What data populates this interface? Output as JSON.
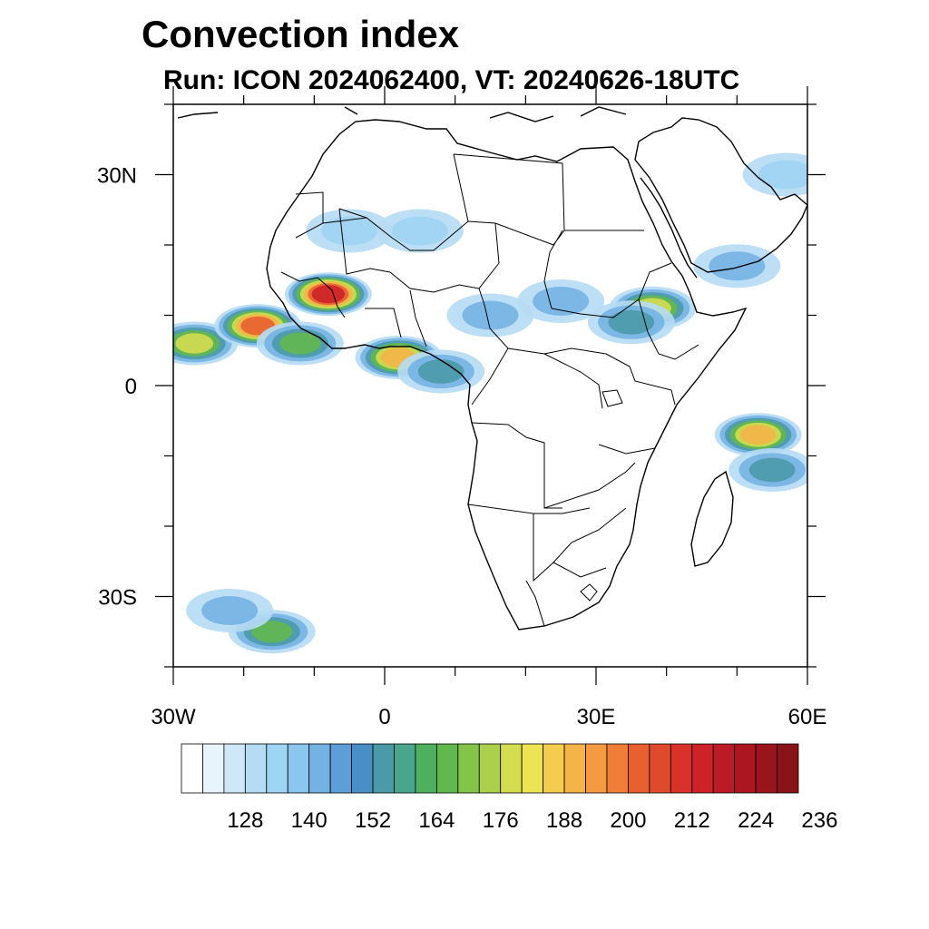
{
  "header": {
    "title": "Convection index",
    "subtitle": "Run: ICON 2024062400,  VT: 20240626-18UTC"
  },
  "map": {
    "region": "Africa",
    "lon_range": [
      -30,
      60
    ],
    "lat_range": [
      -40,
      40
    ],
    "lat_ticks": [
      {
        "value": 30,
        "label": "30N"
      },
      {
        "value": 0,
        "label": "0"
      },
      {
        "value": -30,
        "label": "30S"
      }
    ],
    "lon_ticks": [
      {
        "value": -30,
        "label": "30W"
      },
      {
        "value": 0,
        "label": "0"
      },
      {
        "value": 30,
        "label": "30E"
      },
      {
        "value": 60,
        "label": "60E"
      }
    ],
    "convection_areas": [
      {
        "lon": -27,
        "lat": 6,
        "value": 176
      },
      {
        "lon": -18,
        "lat": 8.5,
        "value": 200
      },
      {
        "lon": -12,
        "lat": 6,
        "value": 164
      },
      {
        "lon": 2,
        "lat": 4,
        "value": 188
      },
      {
        "lon": 8,
        "lat": 2,
        "value": 152
      },
      {
        "lon": 38,
        "lat": 11,
        "value": 176
      },
      {
        "lon": 35,
        "lat": 9,
        "value": 152
      },
      {
        "lon": 53,
        "lat": -7,
        "value": 188
      },
      {
        "lon": 55,
        "lat": -12,
        "value": 152
      },
      {
        "lon": -16,
        "lat": -35,
        "value": 164
      },
      {
        "lon": -22,
        "lat": -32,
        "value": 140
      },
      {
        "lon": 5,
        "lat": 22,
        "value": 128
      },
      {
        "lon": -5,
        "lat": 22,
        "value": 128
      },
      {
        "lon": 25,
        "lat": 12,
        "value": 140
      },
      {
        "lon": 15,
        "lat": 10,
        "value": 140
      },
      {
        "lon": 50,
        "lat": 17,
        "value": 140
      },
      {
        "lon": 57,
        "lat": 30,
        "value": 128
      },
      {
        "lon": -8,
        "lat": 13,
        "value": 212
      }
    ]
  },
  "colorbar": {
    "labels": [
      "128",
      "140",
      "152",
      "164",
      "176",
      "188",
      "200",
      "212",
      "224",
      "236"
    ],
    "colors": [
      "#ffffff",
      "#e8f4fc",
      "#cfe8f7",
      "#b6dcf4",
      "#9ed4f4",
      "#8ac6ee",
      "#74b2e4",
      "#5e9ed8",
      "#4a8ec8",
      "#4a9aa8",
      "#4aa68a",
      "#4eb05e",
      "#60b84e",
      "#84c44a",
      "#acd04c",
      "#d4dc50",
      "#ece452",
      "#f4cc4e",
      "#f4b448",
      "#f49a40",
      "#f07e38",
      "#e86030",
      "#e04a2c",
      "#d8322a",
      "#cc2228",
      "#bc1a24",
      "#ac1620",
      "#9a141c",
      "#881418"
    ]
  }
}
